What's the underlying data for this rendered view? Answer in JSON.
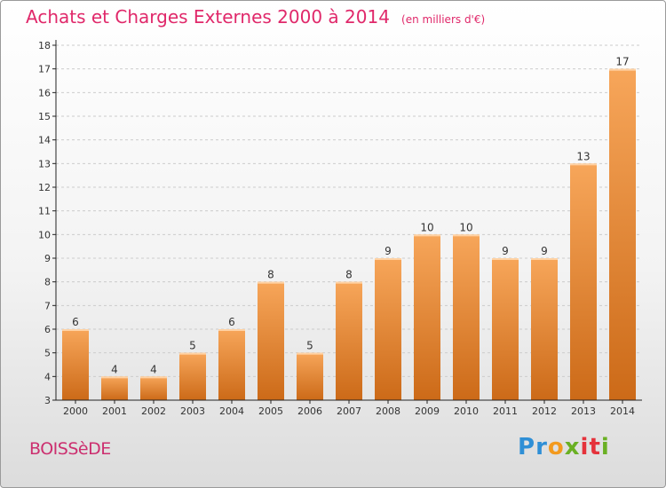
{
  "title": "Achats et Charges Externes 2000 à 2014",
  "unit_note": "(en milliers d'€)",
  "commune": "BOISSèDE",
  "brand": {
    "letters": [
      "P",
      "r",
      "o",
      "x",
      "i",
      "t",
      "i"
    ],
    "colors": [
      "#2f8fd6",
      "#2f8fd6",
      "#f39a1e",
      "#6ab023",
      "#e5323b",
      "#e5323b",
      "#6ab023"
    ]
  },
  "colors": {
    "bar_light": "#f7a65a",
    "bar_dark": "#cc6a18",
    "axis": "#222222",
    "grid": "#cccccc",
    "title": "#e0286a"
  },
  "chart_data": {
    "type": "bar",
    "categories": [
      "2000",
      "2001",
      "2002",
      "2003",
      "2004",
      "2005",
      "2006",
      "2007",
      "2008",
      "2009",
      "2010",
      "2011",
      "2012",
      "2013",
      "2014"
    ],
    "values": [
      6,
      4,
      4,
      5,
      6,
      8,
      5,
      8,
      9,
      10,
      10,
      9,
      9,
      13,
      17
    ],
    "data_labels": [
      "6",
      "4",
      "4",
      "5",
      "6",
      "8",
      "5",
      "8",
      "9",
      "10",
      "10",
      "9",
      "9",
      "13",
      "17"
    ],
    "y_ticks": [
      "3",
      "4",
      "5",
      "6",
      "7",
      "8",
      "9",
      "10",
      "11",
      "12",
      "13",
      "14",
      "15",
      "16",
      "17",
      "18"
    ],
    "ylim": [
      3,
      18
    ],
    "grid": true,
    "legend": "none"
  }
}
